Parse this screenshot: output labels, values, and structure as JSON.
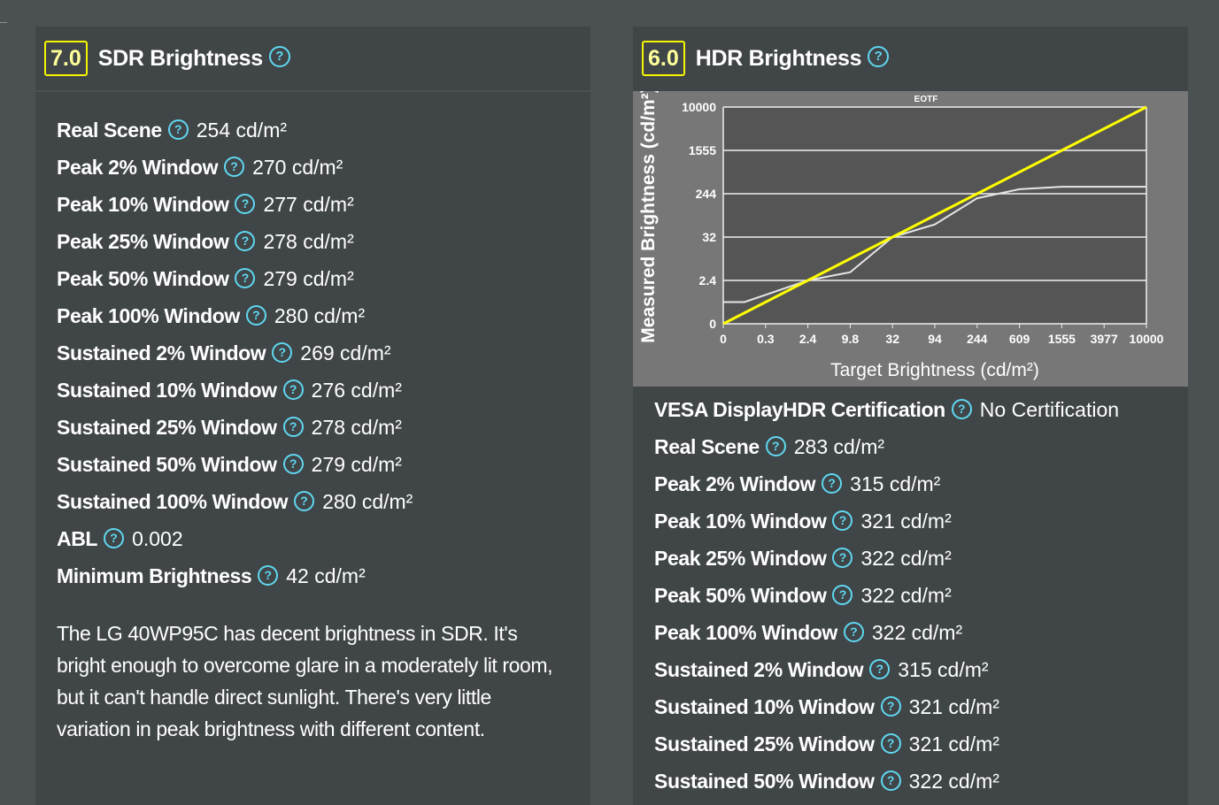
{
  "sdr": {
    "score": "7.0",
    "title": "SDR Brightness",
    "rows": [
      {
        "label": "Real Scene",
        "value": "254 cd/m²"
      },
      {
        "label": "Peak 2% Window",
        "value": "270 cd/m²"
      },
      {
        "label": "Peak 10% Window",
        "value": "277 cd/m²"
      },
      {
        "label": "Peak 25% Window",
        "value": "278 cd/m²"
      },
      {
        "label": "Peak 50% Window",
        "value": "279 cd/m²"
      },
      {
        "label": "Peak 100% Window",
        "value": "280 cd/m²"
      },
      {
        "label": "Sustained 2% Window",
        "value": "269 cd/m²"
      },
      {
        "label": "Sustained 10% Window",
        "value": "276 cd/m²"
      },
      {
        "label": "Sustained 25% Window",
        "value": "278 cd/m²"
      },
      {
        "label": "Sustained 50% Window",
        "value": "279 cd/m²"
      },
      {
        "label": "Sustained 100% Window",
        "value": "280 cd/m²"
      },
      {
        "label": "ABL",
        "value": "0.002"
      },
      {
        "label": "Minimum Brightness",
        "value": "42 cd/m²"
      }
    ],
    "description": "The LG 40WP95C has decent brightness in SDR. It's bright enough to overcome glare in a moderately lit room, but it can't handle direct sunlight. There's very little variation in peak brightness with different content."
  },
  "hdr": {
    "score": "6.0",
    "title": "HDR Brightness",
    "rows": [
      {
        "label": "VESA DisplayHDR Certification",
        "value": "No Certification"
      },
      {
        "label": "Real Scene",
        "value": "283 cd/m²"
      },
      {
        "label": "Peak 2% Window",
        "value": "315 cd/m²"
      },
      {
        "label": "Peak 10% Window",
        "value": "321 cd/m²"
      },
      {
        "label": "Peak 25% Window",
        "value": "322 cd/m²"
      },
      {
        "label": "Peak 50% Window",
        "value": "322 cd/m²"
      },
      {
        "label": "Peak 100% Window",
        "value": "322 cd/m²"
      },
      {
        "label": "Sustained 2% Window",
        "value": "315 cd/m²"
      },
      {
        "label": "Sustained 10% Window",
        "value": "321 cd/m²"
      },
      {
        "label": "Sustained 25% Window",
        "value": "321 cd/m²"
      },
      {
        "label": "Sustained 50% Window",
        "value": "322 cd/m²"
      }
    ]
  },
  "help_icon": "question-circle-icon",
  "colors": {
    "score_border": "#f5f500",
    "help_icon": "#5fd8f0",
    "target_line": "#ffff00",
    "measured_line": "#e6e6e6"
  },
  "chart_data": {
    "type": "line",
    "title": "EOTF",
    "xlabel": "Target Brightness (cd/m²)",
    "ylabel": "Measured Brightness (cd/m²)",
    "x_ticks": [
      "0",
      "0.3",
      "2.4",
      "9.8",
      "32",
      "94",
      "244",
      "609",
      "1555",
      "3977",
      "10000"
    ],
    "y_ticks": [
      "0",
      "2.4",
      "32",
      "244",
      "1555",
      "10000"
    ],
    "xlim": [
      0,
      10000
    ],
    "ylim": [
      0,
      10000
    ],
    "grid": true,
    "series": [
      {
        "name": "Target",
        "x": [
          0,
          10000
        ],
        "y": [
          0,
          10000
        ]
      },
      {
        "name": "Measured",
        "x": [
          0,
          0.15,
          0.3,
          2.4,
          9.8,
          32,
          94,
          244,
          609,
          1555,
          10000
        ],
        "y": [
          1.2,
          1.2,
          1.6,
          2.4,
          8,
          32,
          94,
          222,
          380,
          454,
          454
        ]
      }
    ]
  }
}
